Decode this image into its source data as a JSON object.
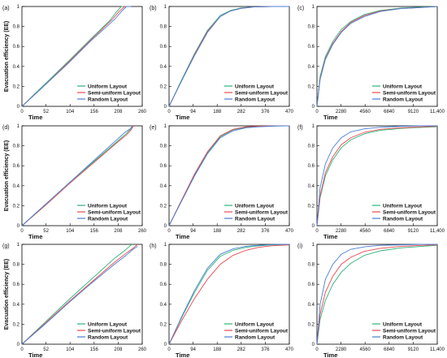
{
  "colors": {
    "uniform": "#2db37a",
    "semi_uniform": "#e8484f",
    "random": "#4a7fd6"
  },
  "chart_data": [
    {
      "panel": "(a)",
      "type": "line",
      "xlabel": "Time",
      "ylabel": "Evacuation efficiency (EE)",
      "xlim": [
        0,
        260
      ],
      "ylim": [
        0,
        1
      ],
      "xticks": [
        0,
        52,
        104,
        156,
        208,
        260
      ],
      "yticks": [
        0,
        0.2,
        0.4,
        0.6,
        0.8,
        1
      ],
      "legend": "bottom-right",
      "series": [
        {
          "name": "Uniform Layout",
          "color_key": "uniform",
          "x": [
            0,
            40,
            100,
            150,
            190,
            205,
            215,
            220
          ],
          "y": [
            0,
            0.18,
            0.45,
            0.68,
            0.86,
            0.95,
            1,
            1
          ]
        },
        {
          "name": "Semi-uniform Layout",
          "color_key": "semi_uniform",
          "x": [
            0,
            40,
            100,
            150,
            195,
            210,
            222,
            230
          ],
          "y": [
            0,
            0.17,
            0.44,
            0.67,
            0.87,
            0.95,
            1,
            1
          ]
        },
        {
          "name": "Random Layout",
          "color_key": "random",
          "x": [
            0,
            40,
            100,
            150,
            200,
            215,
            226,
            236
          ],
          "y": [
            0,
            0.17,
            0.43,
            0.66,
            0.87,
            0.95,
            1,
            1
          ]
        }
      ]
    },
    {
      "panel": "(b)",
      "type": "line",
      "xlabel": "Time",
      "ylabel": "",
      "xlim": [
        0,
        470
      ],
      "ylim": [
        0,
        1
      ],
      "xticks": [
        0,
        94,
        188,
        282,
        376,
        470
      ],
      "yticks": [
        0,
        0.2,
        0.4,
        0.6,
        0.8,
        1
      ],
      "legend": "bottom-right",
      "series": [
        {
          "name": "Uniform Layout",
          "color_key": "uniform",
          "x": [
            0,
            50,
            100,
            150,
            200,
            240,
            280,
            330,
            400,
            470
          ],
          "y": [
            0,
            0.27,
            0.53,
            0.76,
            0.91,
            0.96,
            0.985,
            0.995,
            1,
            1
          ]
        },
        {
          "name": "Semi-uniform Layout",
          "color_key": "semi_uniform",
          "x": [
            0,
            50,
            100,
            150,
            200,
            240,
            280,
            330,
            400,
            470
          ],
          "y": [
            0,
            0.26,
            0.52,
            0.75,
            0.9,
            0.955,
            0.98,
            0.995,
            1,
            1
          ]
        },
        {
          "name": "Random Layout",
          "color_key": "random",
          "x": [
            0,
            50,
            100,
            150,
            200,
            240,
            280,
            330,
            400,
            470
          ],
          "y": [
            0,
            0.26,
            0.51,
            0.74,
            0.9,
            0.955,
            0.98,
            0.995,
            1,
            1
          ]
        }
      ]
    },
    {
      "panel": "(c)",
      "type": "line",
      "xlabel": "Time",
      "ylabel": "",
      "xlim": [
        0,
        11400
      ],
      "ylim": [
        0,
        1
      ],
      "xticks": [
        0,
        2280,
        4560,
        6840,
        9120,
        11400
      ],
      "yticks": [
        0,
        0.2,
        0.4,
        0.6,
        0.8,
        1
      ],
      "legend": "bottom-right",
      "series": [
        {
          "name": "Uniform Layout",
          "color_key": "uniform",
          "x": [
            0,
            300,
            800,
            1500,
            2300,
            3200,
            4500,
            6000,
            8000,
            10000,
            11400
          ],
          "y": [
            0,
            0.3,
            0.5,
            0.65,
            0.77,
            0.85,
            0.92,
            0.96,
            0.985,
            0.995,
            1
          ]
        },
        {
          "name": "Semi-uniform Layout",
          "color_key": "semi_uniform",
          "x": [
            0,
            300,
            800,
            1500,
            2300,
            3200,
            4500,
            6000,
            8000,
            10000,
            11400
          ],
          "y": [
            0,
            0.28,
            0.48,
            0.63,
            0.75,
            0.84,
            0.91,
            0.955,
            0.98,
            0.99,
            1
          ]
        },
        {
          "name": "Random Layout",
          "color_key": "random",
          "x": [
            0,
            300,
            800,
            1500,
            2300,
            3200,
            4500,
            6000,
            8000,
            10000,
            11400
          ],
          "y": [
            0,
            0.27,
            0.47,
            0.62,
            0.74,
            0.83,
            0.9,
            0.95,
            0.98,
            0.99,
            1
          ]
        }
      ]
    },
    {
      "panel": "(d)",
      "type": "line",
      "xlabel": "Time",
      "ylabel": "Evacuation efficiency (EE)",
      "xlim": [
        0,
        260
      ],
      "ylim": [
        0,
        1
      ],
      "xticks": [
        0,
        52,
        104,
        156,
        208,
        260
      ],
      "yticks": [
        0,
        0.2,
        0.4,
        0.6,
        0.8,
        1
      ],
      "legend": "bottom-right",
      "series": [
        {
          "name": "Uniform Layout",
          "color_key": "uniform",
          "x": [
            0,
            50,
            100,
            150,
            200,
            225,
            235,
            240
          ],
          "y": [
            0,
            0.21,
            0.42,
            0.62,
            0.82,
            0.92,
            0.97,
            1
          ]
        },
        {
          "name": "Semi-uniform Layout",
          "color_key": "semi_uniform",
          "x": [
            0,
            50,
            100,
            150,
            200,
            226,
            236,
            241
          ],
          "y": [
            0,
            0.2,
            0.41,
            0.61,
            0.81,
            0.91,
            0.96,
            1
          ]
        },
        {
          "name": "Random Layout",
          "color_key": "random",
          "x": [
            0,
            50,
            100,
            150,
            200,
            224,
            234,
            239
          ],
          "y": [
            0,
            0.21,
            0.42,
            0.63,
            0.84,
            0.94,
            0.97,
            1
          ]
        }
      ]
    },
    {
      "panel": "(e)",
      "type": "line",
      "xlabel": "Time",
      "ylabel": "",
      "xlim": [
        0,
        470
      ],
      "ylim": [
        0,
        1
      ],
      "xticks": [
        0,
        94,
        188,
        282,
        376,
        470
      ],
      "yticks": [
        0,
        0.2,
        0.4,
        0.6,
        0.8,
        1
      ],
      "legend": "bottom-right",
      "series": [
        {
          "name": "Uniform Layout",
          "color_key": "uniform",
          "x": [
            0,
            50,
            100,
            150,
            200,
            250,
            300,
            350,
            420,
            470
          ],
          "y": [
            0,
            0.26,
            0.51,
            0.73,
            0.89,
            0.96,
            0.985,
            0.995,
            1,
            1
          ]
        },
        {
          "name": "Semi-uniform Layout",
          "color_key": "semi_uniform",
          "x": [
            0,
            50,
            100,
            150,
            200,
            250,
            300,
            350,
            420,
            470
          ],
          "y": [
            0,
            0.26,
            0.52,
            0.74,
            0.9,
            0.965,
            0.99,
            0.995,
            1,
            1
          ]
        },
        {
          "name": "Random Layout",
          "color_key": "random",
          "x": [
            0,
            50,
            100,
            150,
            200,
            250,
            300,
            350,
            420,
            470
          ],
          "y": [
            0,
            0.25,
            0.5,
            0.72,
            0.88,
            0.95,
            0.98,
            0.99,
            0.998,
            1
          ]
        }
      ]
    },
    {
      "panel": "(f)",
      "type": "line",
      "xlabel": "Time",
      "ylabel": "",
      "xlim": [
        0,
        11400
      ],
      "ylim": [
        0,
        1
      ],
      "xticks": [
        0,
        2280,
        4560,
        6840,
        9120,
        11400
      ],
      "yticks": [
        0,
        0.2,
        0.4,
        0.6,
        0.8,
        1
      ],
      "legend": "bottom-right",
      "series": [
        {
          "name": "Uniform Layout",
          "color_key": "uniform",
          "x": [
            0,
            300,
            800,
            1500,
            2300,
            3200,
            4500,
            6000,
            8000,
            10000,
            11400
          ],
          "y": [
            0,
            0.28,
            0.5,
            0.66,
            0.78,
            0.86,
            0.92,
            0.955,
            0.975,
            0.985,
            0.99
          ]
        },
        {
          "name": "Semi-uniform Layout",
          "color_key": "semi_uniform",
          "x": [
            0,
            300,
            800,
            1500,
            2300,
            3200,
            4500,
            6000,
            8000,
            10000,
            11400
          ],
          "y": [
            0,
            0.3,
            0.53,
            0.69,
            0.81,
            0.88,
            0.935,
            0.965,
            0.98,
            0.99,
            0.995
          ]
        },
        {
          "name": "Random Layout",
          "color_key": "random",
          "x": [
            0,
            300,
            800,
            1500,
            2300,
            3200,
            4500,
            6000,
            8000,
            10000,
            11400
          ],
          "y": [
            0,
            0.38,
            0.62,
            0.78,
            0.88,
            0.94,
            0.97,
            0.985,
            0.995,
            1,
            1
          ]
        }
      ]
    },
    {
      "panel": "(g)",
      "type": "line",
      "xlabel": "Time",
      "ylabel": "Evacuation efficiency (EE)",
      "xlim": [
        0,
        260
      ],
      "ylim": [
        0,
        1
      ],
      "xticks": [
        0,
        52,
        104,
        156,
        208,
        260
      ],
      "yticks": [
        0,
        0.2,
        0.4,
        0.6,
        0.8,
        1
      ],
      "legend": "bottom-right",
      "series": [
        {
          "name": "Uniform Layout",
          "color_key": "uniform",
          "x": [
            0,
            50,
            100,
            150,
            200,
            220,
            230,
            238
          ],
          "y": [
            0,
            0.22,
            0.44,
            0.65,
            0.86,
            0.93,
            0.97,
            1
          ]
        },
        {
          "name": "Semi-uniform Layout",
          "color_key": "semi_uniform",
          "x": [
            0,
            50,
            100,
            150,
            200,
            225,
            240,
            250
          ],
          "y": [
            0,
            0.21,
            0.42,
            0.62,
            0.82,
            0.91,
            0.96,
            1
          ]
        },
        {
          "name": "Random Layout",
          "color_key": "random",
          "x": [
            0,
            50,
            100,
            150,
            200,
            225,
            240,
            250
          ],
          "y": [
            0,
            0.2,
            0.41,
            0.61,
            0.8,
            0.89,
            0.95,
            0.98
          ]
        }
      ]
    },
    {
      "panel": "(h)",
      "type": "line",
      "xlabel": "Time",
      "ylabel": "",
      "xlim": [
        0,
        470
      ],
      "ylim": [
        0,
        1
      ],
      "xticks": [
        0,
        94,
        188,
        282,
        376,
        470
      ],
      "yticks": [
        0,
        0.2,
        0.4,
        0.6,
        0.8,
        1
      ],
      "legend": "bottom-right",
      "series": [
        {
          "name": "Uniform Layout",
          "color_key": "uniform",
          "x": [
            0,
            50,
            100,
            150,
            200,
            250,
            300,
            350,
            400,
            470
          ],
          "y": [
            0,
            0.27,
            0.52,
            0.74,
            0.88,
            0.94,
            0.97,
            0.985,
            0.995,
            1
          ]
        },
        {
          "name": "Semi-uniform Layout",
          "color_key": "semi_uniform",
          "x": [
            0,
            50,
            100,
            150,
            200,
            250,
            300,
            350,
            400,
            470
          ],
          "y": [
            0,
            0.24,
            0.46,
            0.65,
            0.8,
            0.89,
            0.94,
            0.97,
            0.985,
            0.995
          ]
        },
        {
          "name": "Random Layout",
          "color_key": "random",
          "x": [
            0,
            50,
            100,
            150,
            200,
            250,
            300,
            350,
            400,
            470
          ],
          "y": [
            0,
            0.28,
            0.54,
            0.76,
            0.9,
            0.955,
            0.98,
            0.99,
            0.998,
            1
          ]
        }
      ]
    },
    {
      "panel": "(i)",
      "type": "line",
      "xlabel": "Time",
      "ylabel": "",
      "xlim": [
        0,
        11400
      ],
      "ylim": [
        0,
        1
      ],
      "xticks": [
        0,
        2280,
        4560,
        6840,
        9120,
        11400
      ],
      "yticks": [
        0,
        0.2,
        0.4,
        0.6,
        0.8,
        1
      ],
      "legend": "bottom-right",
      "series": [
        {
          "name": "Uniform Layout",
          "color_key": "uniform",
          "x": [
            0,
            300,
            800,
            1500,
            2300,
            3200,
            4500,
            6000,
            8000,
            10000,
            11400
          ],
          "y": [
            0,
            0.25,
            0.44,
            0.6,
            0.72,
            0.81,
            0.89,
            0.935,
            0.965,
            0.98,
            0.99
          ]
        },
        {
          "name": "Semi-uniform Layout",
          "color_key": "semi_uniform",
          "x": [
            0,
            300,
            800,
            1500,
            2300,
            3200,
            4500,
            6000,
            8000,
            10000,
            11400
          ],
          "y": [
            0,
            0.3,
            0.52,
            0.68,
            0.8,
            0.87,
            0.93,
            0.96,
            0.98,
            0.99,
            0.995
          ]
        },
        {
          "name": "Random Layout",
          "color_key": "random",
          "x": [
            0,
            300,
            800,
            1500,
            2300,
            3200,
            4500,
            6000,
            8000,
            10000,
            11400
          ],
          "y": [
            0,
            0.4,
            0.65,
            0.8,
            0.9,
            0.95,
            0.975,
            0.99,
            0.995,
            1,
            1
          ]
        }
      ]
    }
  ]
}
